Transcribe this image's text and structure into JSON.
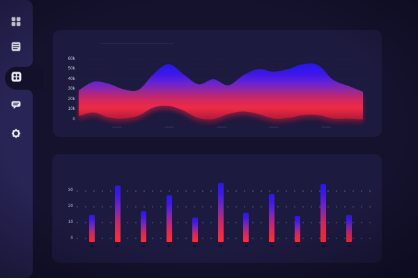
{
  "theme": {
    "background": "#15122e",
    "card_background": "#1d1a3f",
    "sidebar_background": "#282455",
    "active_pill": "#131129",
    "icon_color": "#e9ebf7",
    "label_color": "#cdd2e6",
    "grid_dot_color": "#5091d7",
    "accent_blue": "#2b16f2",
    "accent_red": "#f5323c"
  },
  "sidebar": {
    "items": [
      {
        "id": "apps",
        "icon": "grid-icon",
        "active": false
      },
      {
        "id": "reports",
        "icon": "article-icon",
        "active": false
      },
      {
        "id": "dashboard",
        "icon": "dashboard-icon",
        "active": true
      },
      {
        "id": "messages",
        "icon": "chat-icon",
        "active": false
      },
      {
        "id": "settings",
        "icon": "gear-icon",
        "active": false
      }
    ]
  },
  "chart_data": [
    {
      "type": "area",
      "title": "",
      "ylabel": "",
      "unit": "k",
      "ylim": [
        0,
        60000
      ],
      "y_tick_labels": [
        "60k",
        "50k",
        "40k",
        "30k",
        "20k",
        "10k",
        "0"
      ],
      "grid": "faint-dotted-horizontal",
      "legend": "none",
      "series": [
        {
          "name": "band-upper-k",
          "values": [
            29,
            37.5,
            35.5,
            30,
            29.5,
            45,
            55,
            45,
            35,
            40,
            34,
            44,
            50,
            47.5,
            50,
            55,
            54,
            39.5,
            33.5,
            27.5
          ]
        },
        {
          "name": "band-lower-k",
          "values": [
            3.5,
            7,
            2,
            1,
            4,
            12,
            13.5,
            9,
            1.5,
            0.5,
            5.5,
            8,
            5.5,
            1,
            1.5,
            4.5,
            4.5,
            1,
            1,
            0
          ]
        }
      ],
      "style": {
        "fill_gradient_top_to_bottom": [
          "#2412f8",
          "#6e24cd",
          "#d62757",
          "#ee2a44",
          "#801832"
        ]
      }
    },
    {
      "type": "bar",
      "title": "",
      "ylabel": "",
      "ylim": [
        0,
        35
      ],
      "y_tick_labels": [
        "30",
        "20",
        "10",
        "0"
      ],
      "grid": "dotted-matrix",
      "legend": "none",
      "values": [
        15,
        33,
        17,
        27,
        13,
        35,
        16,
        28,
        14,
        34,
        15
      ],
      "style": {
        "bar_gradient": [
          "#2b16f2",
          "#7b28b4",
          "#f5323c"
        ]
      }
    }
  ]
}
